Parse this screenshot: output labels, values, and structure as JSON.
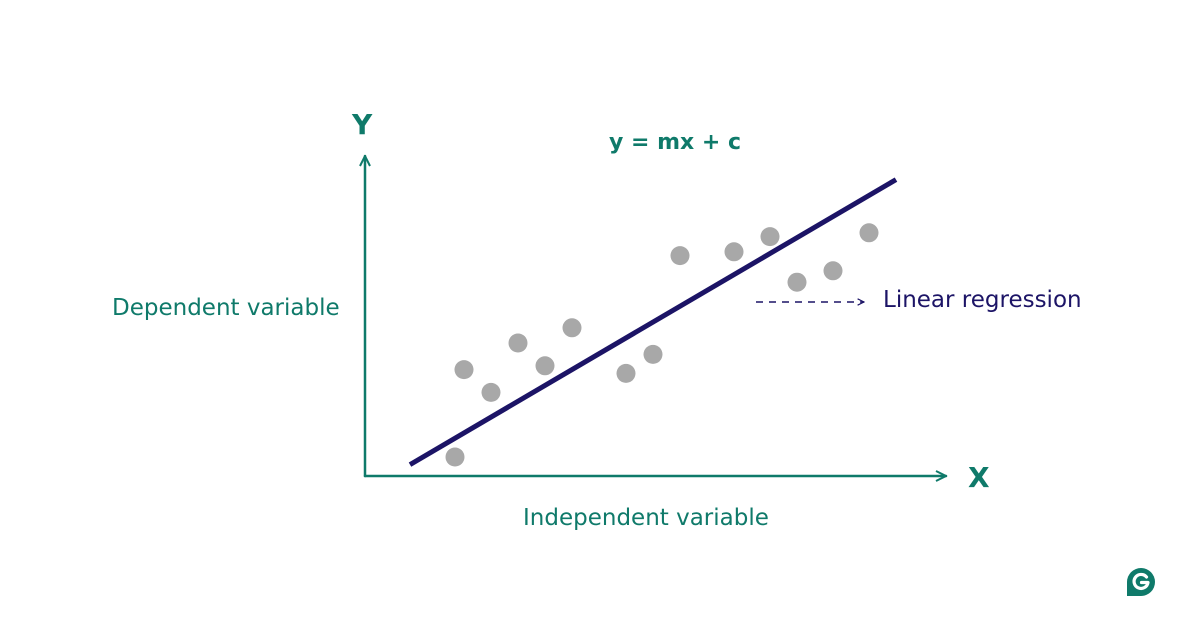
{
  "axes": {
    "y_title": "Y",
    "x_title": "X",
    "y_label": "Dependent variable",
    "x_label": "Independent variable"
  },
  "equation": "y = mx + c",
  "legend": {
    "line_label": "Linear regression"
  },
  "points": [
    {
      "x": 1.0,
      "y": 0.5
    },
    {
      "x": 1.1,
      "y": 2.8
    },
    {
      "x": 1.4,
      "y": 2.2
    },
    {
      "x": 1.7,
      "y": 3.5
    },
    {
      "x": 2.0,
      "y": 2.9
    },
    {
      "x": 2.3,
      "y": 3.9
    },
    {
      "x": 2.9,
      "y": 2.7
    },
    {
      "x": 3.2,
      "y": 3.2
    },
    {
      "x": 3.5,
      "y": 5.8
    },
    {
      "x": 4.1,
      "y": 5.9
    },
    {
      "x": 4.5,
      "y": 6.3
    },
    {
      "x": 4.8,
      "y": 5.1
    },
    {
      "x": 5.2,
      "y": 5.4
    },
    {
      "x": 5.6,
      "y": 6.4
    }
  ],
  "regression": {
    "x": [
      0.5,
      5.9
    ],
    "y": [
      0.3,
      7.8
    ]
  },
  "colors": {
    "axis": "#0f7a6a",
    "text": "#0f7a6a",
    "regression_line": "#1c1466",
    "points": "#a8a8a8",
    "legend_text": "#1c1466",
    "brand": "#0f7a6a"
  },
  "brand_icon": "grammarly-logo-icon"
}
